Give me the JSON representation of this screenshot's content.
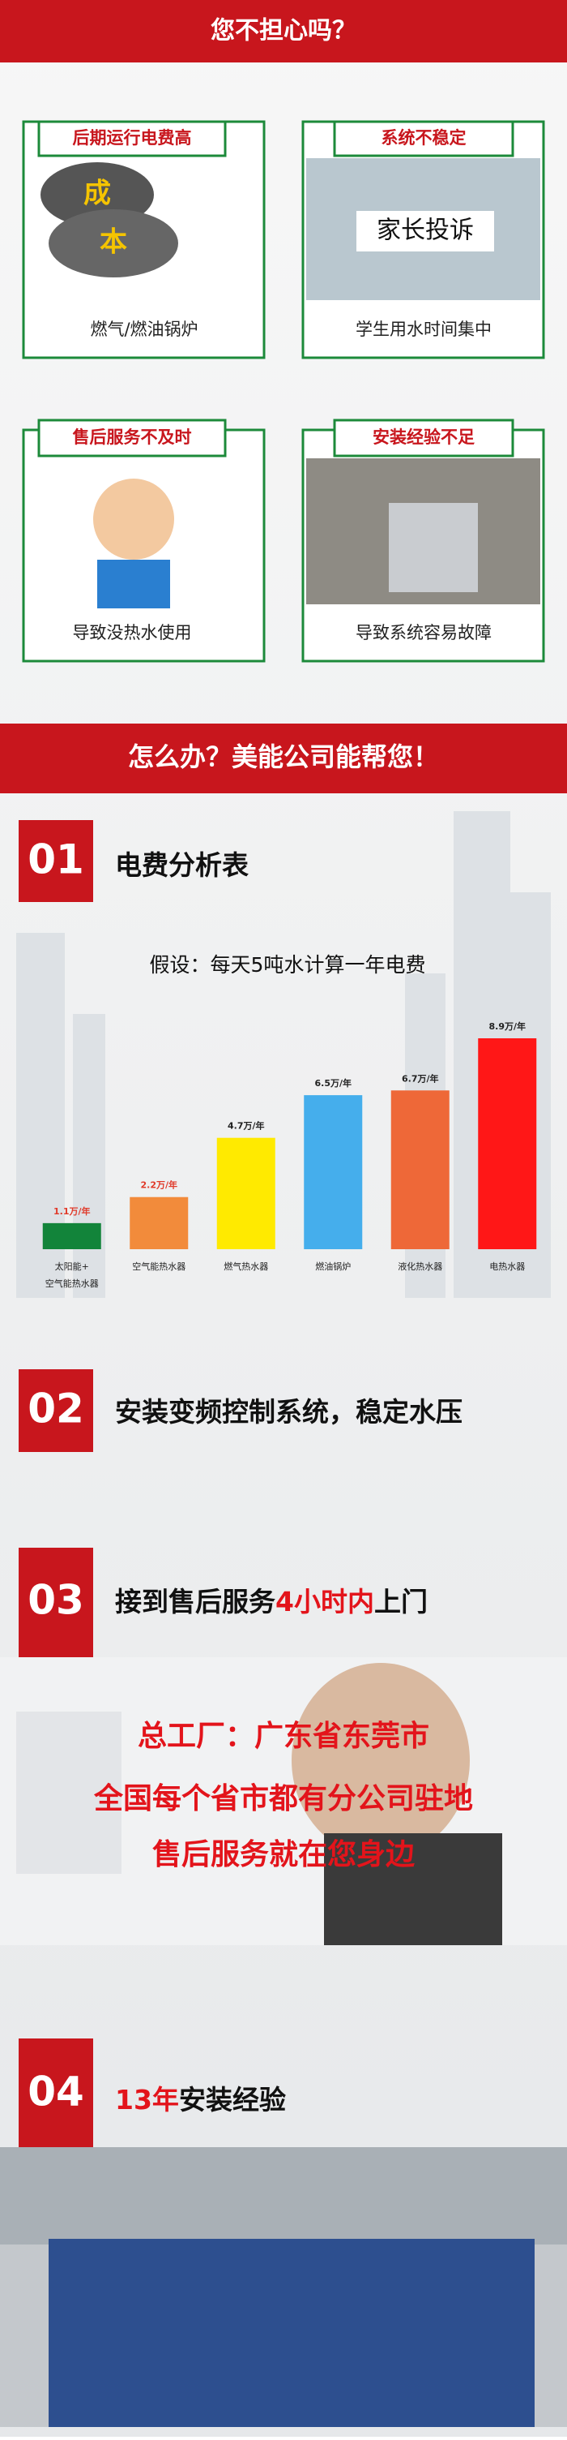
{
  "header": {
    "title": "您不担心吗？"
  },
  "problems": [
    {
      "title": "后期运行电费高",
      "caption": "燃气/燃油锅炉",
      "image_text": [
        "成",
        "本"
      ]
    },
    {
      "title": "系统不稳定",
      "caption": "学生用水时间集中",
      "image_text": [
        "家长投诉"
      ]
    },
    {
      "title": "售后服务不及时",
      "caption": "导致没热水使用"
    },
    {
      "title": "安装经验不足",
      "caption": "导致系统容易故障"
    }
  ],
  "banner": "怎么办？美能公司能帮您！",
  "sections": [
    {
      "number": "01",
      "title": [
        "电费分析表"
      ]
    },
    {
      "number": "02",
      "title": [
        "安装变频控制系统，稳定水压"
      ]
    },
    {
      "number": "03",
      "title": [
        "接到售后服务",
        "4小时内",
        "上门"
      ]
    },
    {
      "number": "04",
      "title": [
        "13年",
        "安装经验"
      ]
    }
  ],
  "service_lines": [
    "总工厂：广东省东莞市",
    "全国每个省市都有分公司驻地",
    "售后服务就在您身边"
  ],
  "chart_data": {
    "type": "bar",
    "title": "假设：每天5吨水计算一年电费",
    "categories": [
      "太阳能+空气能热水器",
      "空气能热水器",
      "燃气热水器",
      "燃油锅炉",
      "液化热水器",
      "电热水器"
    ],
    "values": [
      1.1,
      2.2,
      4.7,
      6.5,
      6.7,
      8.9
    ],
    "value_labels": [
      "1.1万/年",
      "2.2万/年",
      "4.7万/年",
      "6.5万/年",
      "6.7万/年",
      "8.9万/年"
    ],
    "colors": [
      "#12843a",
      "#f28b3b",
      "#ffea00",
      "#45aeec",
      "#ee6838",
      "#ff1717"
    ],
    "value_label_colors": [
      "#e03a2a",
      "#e03a2a",
      "#222222",
      "#222222",
      "#222222",
      "#222222"
    ]
  }
}
